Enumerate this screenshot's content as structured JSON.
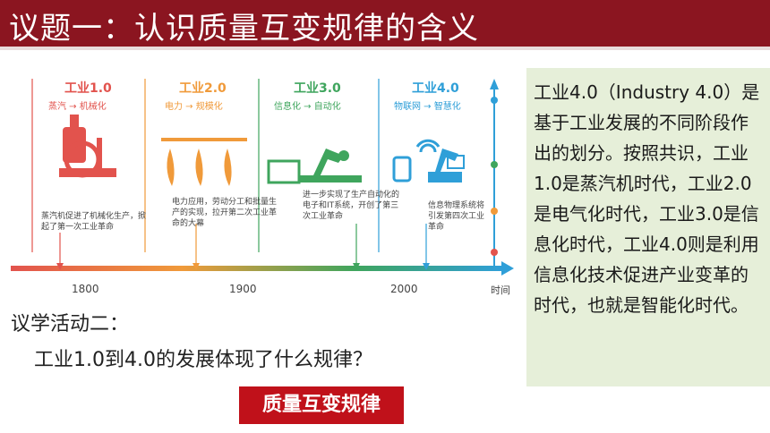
{
  "header": {
    "title": "议题一：认识质量互变规律的含义"
  },
  "timeline": {
    "eras": [
      {
        "name": "工业1.0",
        "sub": "蒸汽 → 机械化",
        "color": "#e2534d",
        "desc": "蒸汽机促进了机械化生产，掀起了第一次工业革命"
      },
      {
        "name": "工业2.0",
        "sub": "电力 → 规模化",
        "color": "#f09a3a",
        "desc": "电力应用，劳动分工和批量生产的实现，拉开第二次工业革命的大幕"
      },
      {
        "name": "工业3.0",
        "sub": "信息化 → 自动化",
        "color": "#3fa55d",
        "desc": "进一步实现了生产自动化的电子和IT系统，开创了第三次工业革命"
      },
      {
        "name": "工业4.0",
        "sub": "物联网 → 智慧化",
        "color": "#2f9fd8",
        "desc": "信息物理系统将引发第四次工业革命"
      }
    ],
    "ticks": [
      "1800",
      "1900",
      "2000"
    ],
    "axis_label": "时间"
  },
  "notes": {
    "text": "工业4.0（Industry 4.0）是基于工业发展的不同阶段作出的划分。按照共识，工业1.0是蒸汽机时代，工业2.0是电气化时代，工业3.0是信息化时代，工业4.0则是利用信息化技术促进产业变革的时代，也就是智能化时代。"
  },
  "activity": {
    "title": "议学活动二：",
    "question": "工业1.0到4.0的发展体现了什么规律？",
    "answer": "质量互变规律"
  },
  "colors": {
    "banner": "#8b1520",
    "answer_bg": "#c0111a",
    "notes_bg": "#e6efd9"
  }
}
